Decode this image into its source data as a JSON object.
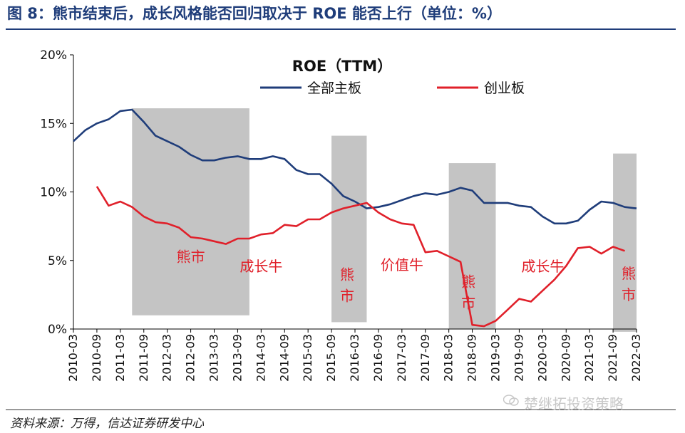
{
  "header": {
    "title": "图 8：熊市结束后，成长风格能否回归取决于 ROE 能否上行（单位：%）"
  },
  "footer": {
    "source": "资料来源：万得，信达证券研发中心",
    "watermark": "楚继拓投资策略"
  },
  "chart_data": {
    "type": "line",
    "title": "ROE（TTM）",
    "xlabel": "",
    "ylabel": "",
    "ylim": [
      0,
      20
    ],
    "yticks": [
      "0%",
      "5%",
      "10%",
      "15%",
      "20%"
    ],
    "xticks": [
      "2010-03",
      "2010-09",
      "2011-03",
      "2011-09",
      "2012-03",
      "2012-09",
      "2013-03",
      "2013-09",
      "2014-03",
      "2014-09",
      "2015-03",
      "2015-09",
      "2016-03",
      "2016-09",
      "2017-03",
      "2017-09",
      "2018-03",
      "2018-09",
      "2019-03",
      "2019-09",
      "2020-03",
      "2020-09",
      "2021-03",
      "2021-09",
      "2022-03"
    ],
    "legend_position": "top",
    "grid": false,
    "series": [
      {
        "name": "全部主板",
        "color": "#1f3d7a",
        "points": [
          [
            "2010-03",
            13.7
          ],
          [
            "2010-06",
            14.5
          ],
          [
            "2010-09",
            15.0
          ],
          [
            "2010-12",
            15.3
          ],
          [
            "2011-03",
            15.9
          ],
          [
            "2011-06",
            16.0
          ],
          [
            "2011-09",
            15.1
          ],
          [
            "2011-12",
            14.1
          ],
          [
            "2012-03",
            13.7
          ],
          [
            "2012-06",
            13.3
          ],
          [
            "2012-09",
            12.7
          ],
          [
            "2012-12",
            12.3
          ],
          [
            "2013-03",
            12.3
          ],
          [
            "2013-06",
            12.5
          ],
          [
            "2013-09",
            12.6
          ],
          [
            "2013-12",
            12.4
          ],
          [
            "2014-03",
            12.4
          ],
          [
            "2014-06",
            12.6
          ],
          [
            "2014-09",
            12.4
          ],
          [
            "2014-12",
            11.6
          ],
          [
            "2015-03",
            11.3
          ],
          [
            "2015-06",
            11.3
          ],
          [
            "2015-09",
            10.6
          ],
          [
            "2015-12",
            9.7
          ],
          [
            "2016-03",
            9.3
          ],
          [
            "2016-06",
            8.8
          ],
          [
            "2016-09",
            8.9
          ],
          [
            "2016-12",
            9.1
          ],
          [
            "2017-03",
            9.4
          ],
          [
            "2017-06",
            9.7
          ],
          [
            "2017-09",
            9.9
          ],
          [
            "2017-12",
            9.8
          ],
          [
            "2018-03",
            10.0
          ],
          [
            "2018-06",
            10.3
          ],
          [
            "2018-09",
            10.1
          ],
          [
            "2018-12",
            9.2
          ],
          [
            "2019-03",
            9.2
          ],
          [
            "2019-06",
            9.2
          ],
          [
            "2019-09",
            9.0
          ],
          [
            "2019-12",
            8.9
          ],
          [
            "2020-03",
            8.2
          ],
          [
            "2020-06",
            7.7
          ],
          [
            "2020-09",
            7.7
          ],
          [
            "2020-12",
            7.9
          ],
          [
            "2021-03",
            8.7
          ],
          [
            "2021-06",
            9.3
          ],
          [
            "2021-09",
            9.2
          ],
          [
            "2021-12",
            8.9
          ],
          [
            "2022-03",
            8.8
          ]
        ]
      },
      {
        "name": "创业板",
        "color": "#e0202a",
        "points": [
          [
            "2010-09",
            10.4
          ],
          [
            "2010-12",
            9.0
          ],
          [
            "2011-03",
            9.3
          ],
          [
            "2011-06",
            8.9
          ],
          [
            "2011-09",
            8.2
          ],
          [
            "2011-12",
            7.8
          ],
          [
            "2012-03",
            7.7
          ],
          [
            "2012-06",
            7.4
          ],
          [
            "2012-09",
            6.7
          ],
          [
            "2012-12",
            6.6
          ],
          [
            "2013-03",
            6.4
          ],
          [
            "2013-06",
            6.2
          ],
          [
            "2013-09",
            6.6
          ],
          [
            "2013-12",
            6.6
          ],
          [
            "2014-03",
            6.9
          ],
          [
            "2014-06",
            7.0
          ],
          [
            "2014-09",
            7.6
          ],
          [
            "2014-12",
            7.5
          ],
          [
            "2015-03",
            8.0
          ],
          [
            "2015-06",
            8.0
          ],
          [
            "2015-09",
            8.5
          ],
          [
            "2015-12",
            8.8
          ],
          [
            "2016-03",
            9.0
          ],
          [
            "2016-06",
            9.2
          ],
          [
            "2016-09",
            8.5
          ],
          [
            "2016-12",
            8.0
          ],
          [
            "2017-03",
            7.7
          ],
          [
            "2017-06",
            7.6
          ],
          [
            "2017-09",
            5.6
          ],
          [
            "2017-12",
            5.7
          ],
          [
            "2018-03",
            5.3
          ],
          [
            "2018-06",
            4.9
          ],
          [
            "2018-09",
            0.3
          ],
          [
            "2018-12",
            0.2
          ],
          [
            "2019-03",
            0.6
          ],
          [
            "2019-06",
            1.4
          ],
          [
            "2019-09",
            2.2
          ],
          [
            "2019-12",
            2.0
          ],
          [
            "2020-03",
            2.8
          ],
          [
            "2020-06",
            3.6
          ],
          [
            "2020-09",
            4.6
          ],
          [
            "2020-12",
            5.9
          ],
          [
            "2021-03",
            6.0
          ],
          [
            "2021-06",
            5.5
          ],
          [
            "2021-09",
            6.0
          ],
          [
            "2021-12",
            5.7
          ]
        ]
      }
    ],
    "shaded_periods": [
      {
        "label": "熊市",
        "start": "2011-06",
        "end": "2013-12",
        "top": 16.1,
        "bottom": 1.0
      },
      {
        "label": "熊市",
        "start": "2015-09",
        "end": "2016-06",
        "top": 14.1,
        "bottom": 0.5
      },
      {
        "label": "熊市",
        "start": "2018-03",
        "end": "2019-03",
        "top": 12.1,
        "bottom": 0.0
      },
      {
        "label": "熊市",
        "start": "2021-09",
        "end": "2022-03",
        "top": 12.8,
        "bottom": -0.2
      }
    ],
    "annotations": [
      {
        "text": "熊市",
        "at": "2012-09",
        "y": 4.9,
        "vertical": false
      },
      {
        "text": "成长牛",
        "at": "2014-03",
        "y": 4.2,
        "vertical": false
      },
      {
        "text": "熊市",
        "at": "2016-01",
        "y": 3.6,
        "vertical": true
      },
      {
        "text": "价值牛",
        "at": "2017-03",
        "y": 4.3,
        "vertical": false
      },
      {
        "text": "熊市",
        "at": "2018-08",
        "y": 3.1,
        "vertical": true
      },
      {
        "text": "成长牛",
        "at": "2020-03",
        "y": 4.2,
        "vertical": false
      },
      {
        "text": "熊市",
        "at": "2022-01",
        "y": 3.7,
        "vertical": true
      }
    ]
  }
}
